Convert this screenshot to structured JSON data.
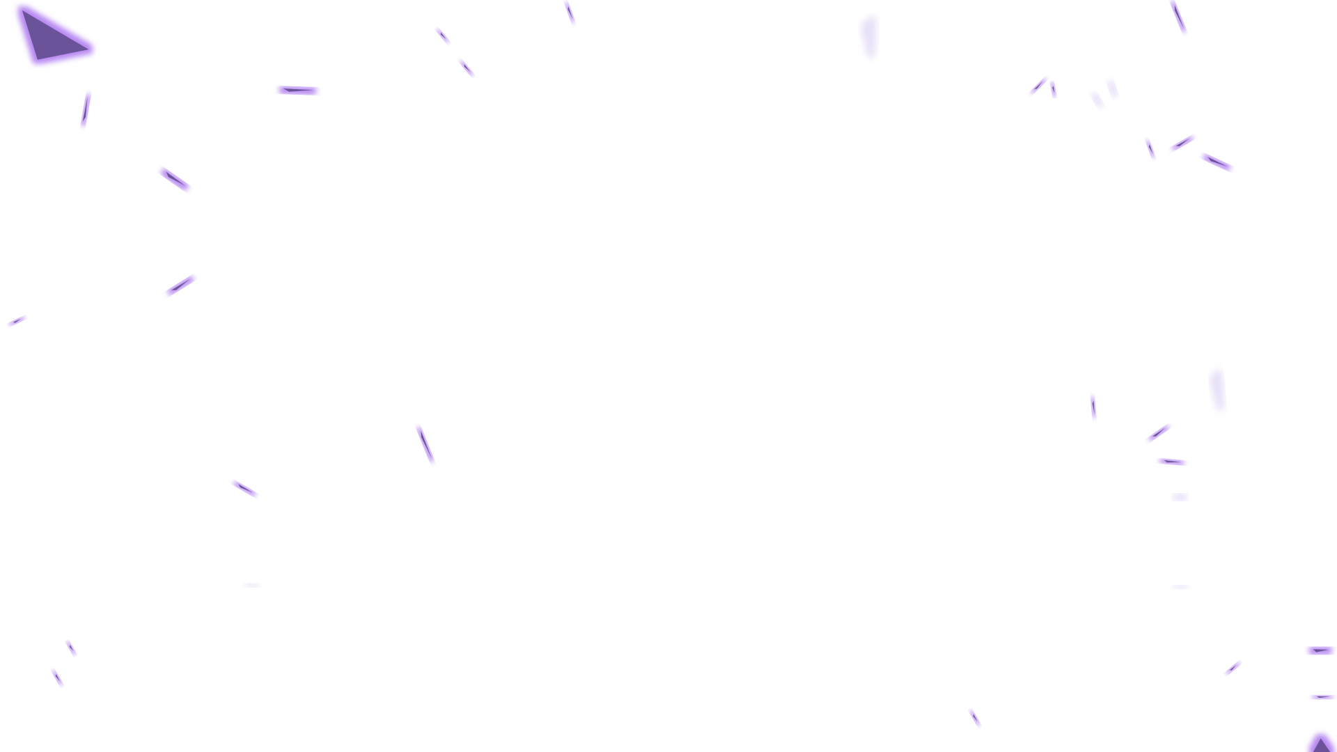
{
  "scene": {
    "background_color": "#ffffff",
    "shard_fill_color": "#6a5298",
    "glow_color": "#b07cf0",
    "faint_glow_color": "#e6dcf7",
    "shard_count": 44,
    "text_content": "none"
  }
}
